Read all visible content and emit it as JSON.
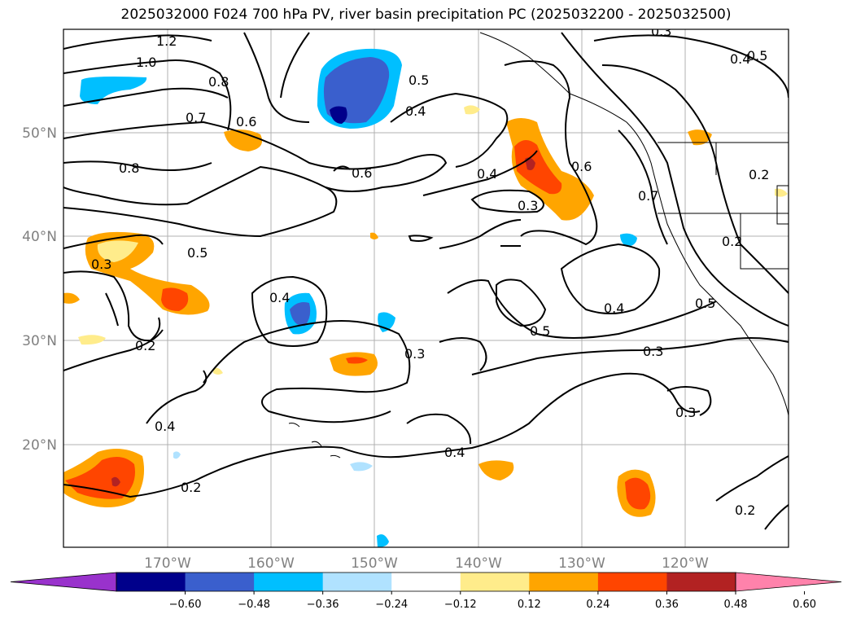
{
  "title": "2025032000 F024 700 hPa PV, river basin precipitation PC (2025032200 - 2025032500)",
  "map": {
    "lat_labels": [
      "50°N",
      "40°N",
      "30°N",
      "20°N"
    ],
    "lon_labels": [
      "170°W",
      "160°W",
      "150°W",
      "140°W",
      "130°W",
      "120°W"
    ],
    "contour_labels": [
      "1.2",
      "1.0",
      "0.8",
      "0.7",
      "0.6",
      "0.8",
      "0.5",
      "0.4",
      "0.6",
      "0.4",
      "0.3",
      "0.6",
      "0.7",
      "0.5",
      "0.4",
      "0.2",
      "0.2",
      "0.3",
      "0.5",
      "0.4",
      "0.3",
      "0.2",
      "0.4",
      "0.4",
      "0.5",
      "0.3",
      "0.4",
      "0.2",
      "0.3",
      "0.2",
      "0.5",
      "0.3"
    ]
  },
  "colorbar": {
    "ticks": [
      "−0.60",
      "−0.48",
      "−0.36",
      "−0.24",
      "−0.12",
      "0.12",
      "0.24",
      "0.36",
      "0.48",
      "0.60"
    ],
    "colors": [
      "#9932cc",
      "#00008b",
      "#3a5fcd",
      "#00bfff",
      "#b0e2ff",
      "#ffffff",
      "#ffec8b",
      "#ffa500",
      "#ff4500",
      "#b22222",
      "#ff82ab"
    ]
  }
}
